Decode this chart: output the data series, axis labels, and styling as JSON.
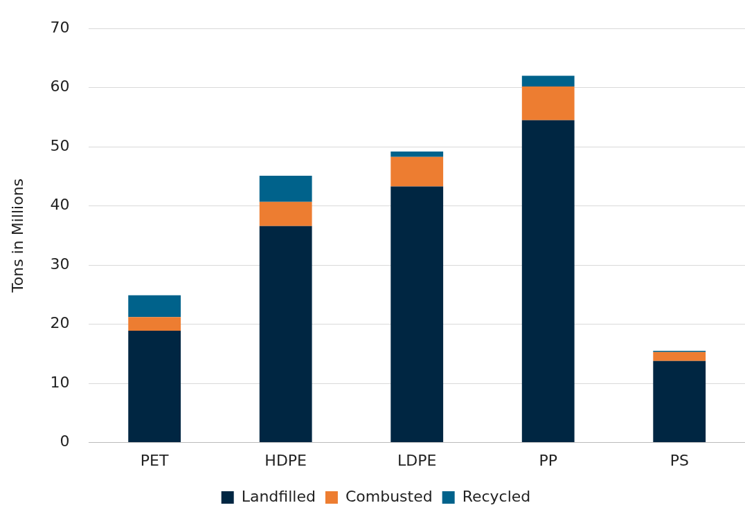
{
  "chart_data": {
    "type": "bar",
    "ylabel": "Tons in Millions",
    "categories": [
      "PET",
      "HDPE",
      "LDPE",
      "PP",
      "PS"
    ],
    "stacked": true,
    "series": [
      {
        "name": "Landfilled",
        "color": "#002642",
        "values": [
          18.9,
          36.6,
          43.3,
          54.5,
          13.8
        ]
      },
      {
        "name": "Combusted",
        "color": "#ed7d31",
        "values": [
          2.3,
          4.1,
          5.0,
          5.7,
          1.5
        ]
      },
      {
        "name": "Recycled",
        "color": "#00628b",
        "values": [
          3.7,
          4.4,
          0.9,
          1.8,
          0.2
        ]
      }
    ],
    "ylim": [
      0,
      70
    ],
    "yticks": [
      0,
      10,
      20,
      30,
      40,
      50,
      60,
      70
    ],
    "grid": "y",
    "legend": "bottom"
  }
}
